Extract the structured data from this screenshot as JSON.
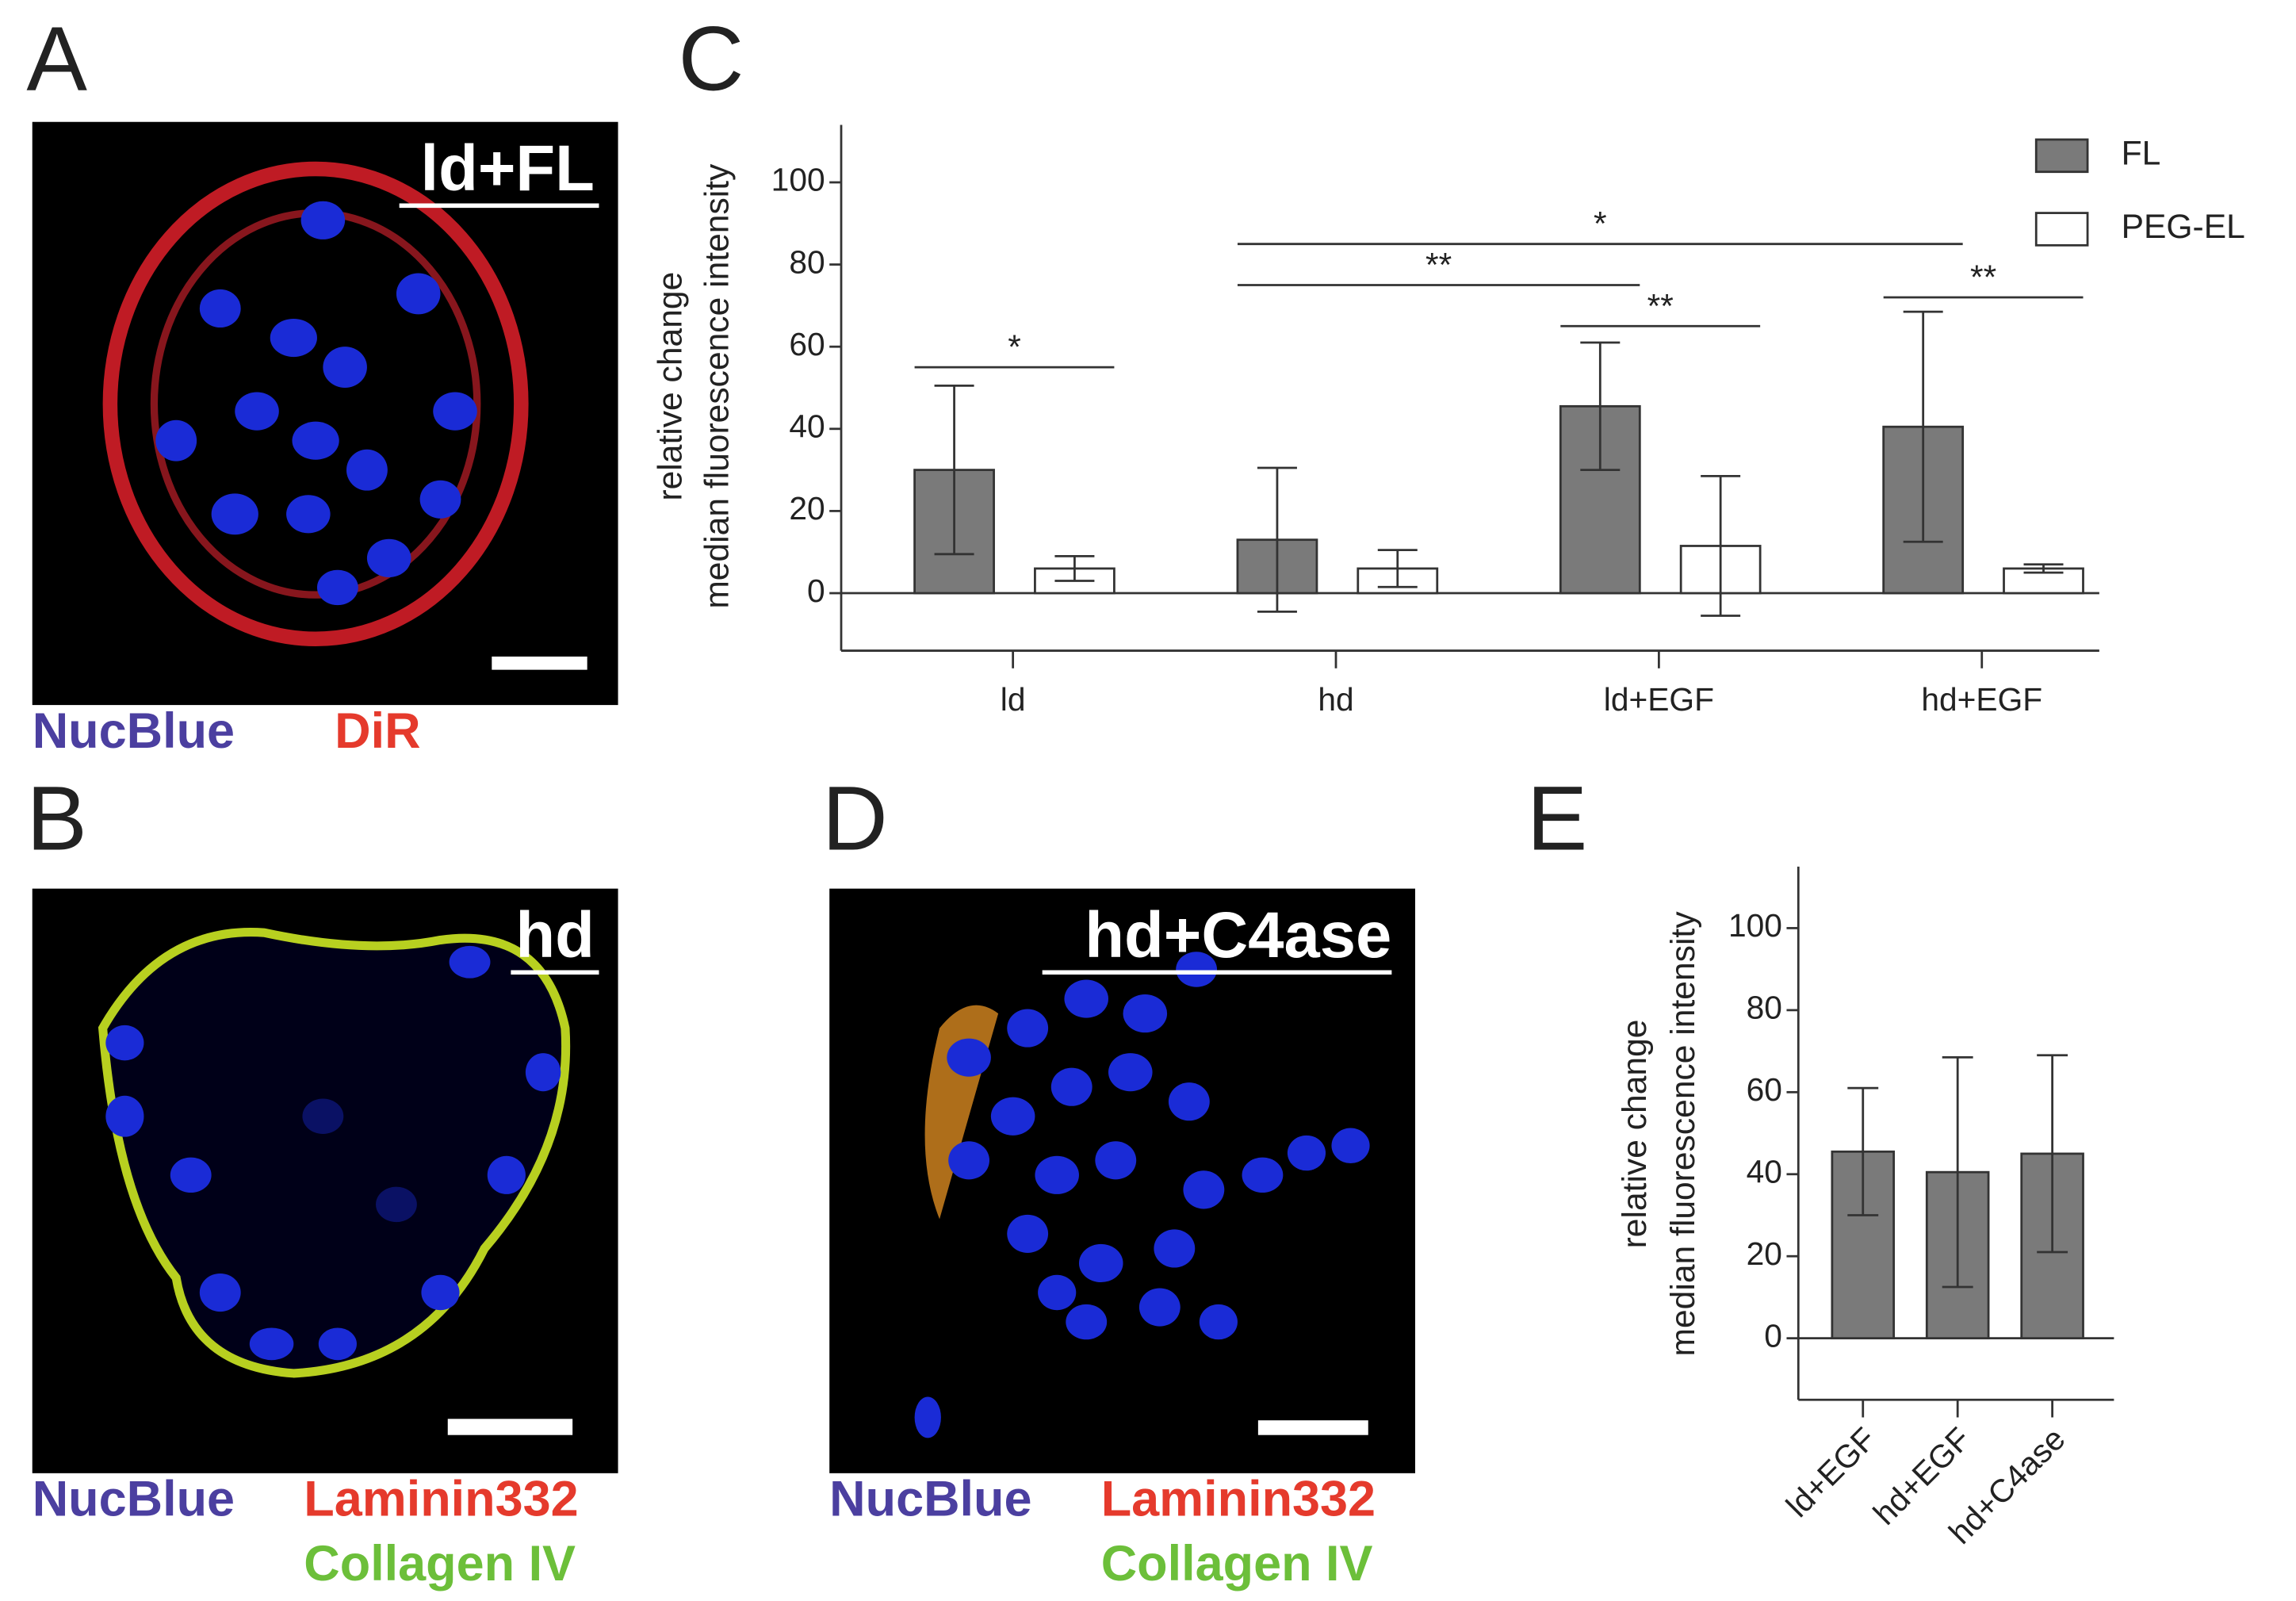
{
  "panels": {
    "a": {
      "label": "A",
      "image_title": "ld+FL",
      "stains": [
        "NucBlue",
        "DiR"
      ]
    },
    "b": {
      "label": "B",
      "image_title": "hd",
      "stains": [
        "NucBlue",
        "Laminin332",
        "Collagen IV"
      ]
    },
    "c": {
      "label": "C"
    },
    "d": {
      "label": "D",
      "image_title": "hd+C4ase",
      "stains": [
        "NucBlue",
        "Laminin332",
        "Collagen IV"
      ]
    },
    "e": {
      "label": "E"
    }
  },
  "chart_data": [
    {
      "type": "bar",
      "ylabel": [
        "relative change",
        "median fluorescence intensity"
      ],
      "categories": [
        "ld",
        "hd",
        "ld+EGF",
        "hd+EGF"
      ],
      "series": [
        {
          "name": "FL",
          "color": "#7a7a7a",
          "values": [
            30,
            13,
            45.5,
            40.5
          ],
          "errors": [
            20.5,
            17.5,
            15.5,
            28
          ]
        },
        {
          "name": "PEG-EL",
          "color": "#ffffff",
          "values": [
            6,
            6,
            11.5,
            6
          ],
          "errors": [
            3,
            4.5,
            17,
            1
          ]
        }
      ],
      "ylim": [
        -14,
        114
      ],
      "yticks": [
        0,
        20,
        40,
        60,
        80,
        100
      ],
      "legend": "upper right",
      "annotations": [
        {
          "text": "*",
          "from": [
            "ld",
            "FL"
          ],
          "to": [
            "ld",
            "PEG-EL"
          ],
          "y": 55
        },
        {
          "text": "**",
          "from": [
            "hd",
            "FL"
          ],
          "to": [
            "ld+EGF",
            "FL"
          ],
          "y": 75
        },
        {
          "text": "*",
          "from": [
            "hd",
            "FL"
          ],
          "to": [
            "hd+EGF",
            "FL"
          ],
          "y": 85
        },
        {
          "text": "**",
          "from": [
            "ld+EGF",
            "FL"
          ],
          "to": [
            "ld+EGF",
            "PEG-EL"
          ],
          "y": 65
        },
        {
          "text": "**",
          "from": [
            "hd+EGF",
            "FL"
          ],
          "to": [
            "hd+EGF",
            "PEG-EL"
          ],
          "y": 72
        }
      ]
    },
    {
      "type": "bar",
      "ylabel": [
        "relative change",
        "median fluorescence intensity"
      ],
      "categories": [
        "ld+EGF",
        "hd+EGF",
        "hd+C4ase"
      ],
      "series": [
        {
          "color": "#7a7a7a",
          "values": [
            45.5,
            40.5,
            45
          ],
          "errors": [
            15.5,
            28,
            24
          ]
        }
      ],
      "ylim": [
        -15,
        115
      ],
      "yticks": [
        0,
        20,
        40,
        60,
        80,
        100
      ]
    }
  ]
}
